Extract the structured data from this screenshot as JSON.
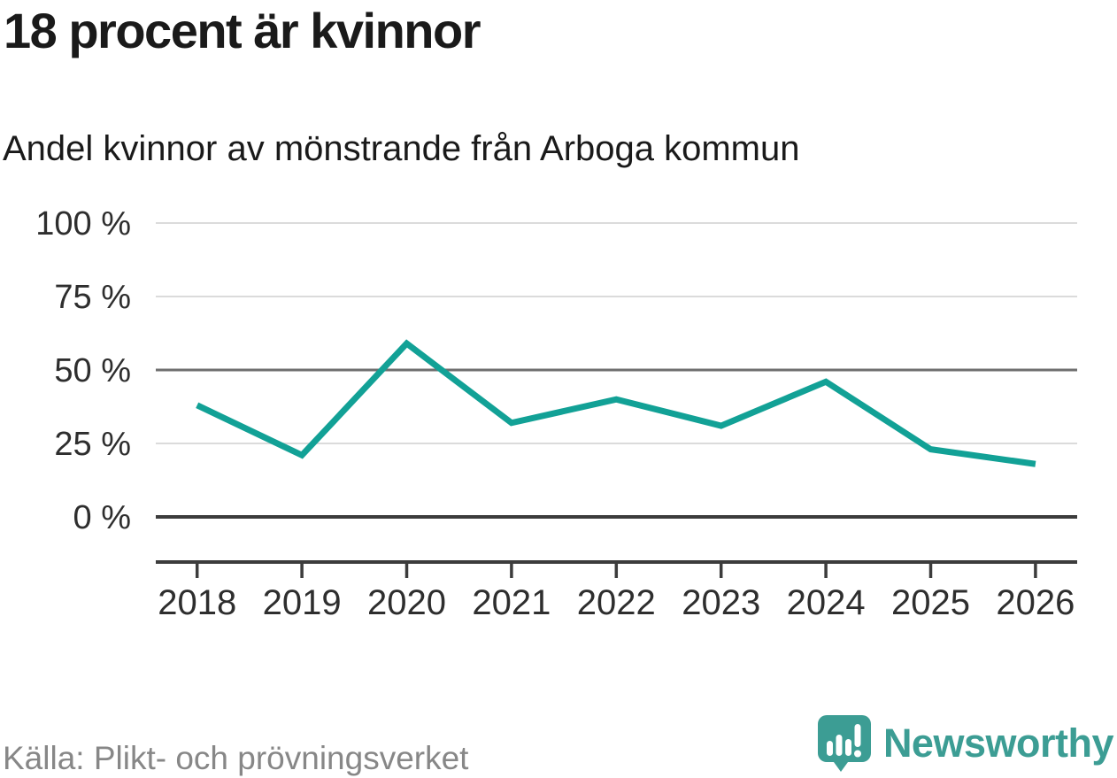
{
  "header": {
    "title": "18 procent är kvinnor",
    "subtitle": "Andel kvinnor av mönstrande från Arboga kommun"
  },
  "chart_data": {
    "type": "line",
    "title": "18 procent är kvinnor",
    "subtitle": "Andel kvinnor av mönstrande från Arboga kommun",
    "x": [
      "2018",
      "2019",
      "2020",
      "2021",
      "2022",
      "2023",
      "2024",
      "2025",
      "2026"
    ],
    "series": [
      {
        "name": "Andel kvinnor av mönstrande",
        "values": [
          38,
          21,
          59,
          32,
          40,
          31,
          46,
          23,
          18
        ]
      }
    ],
    "unit": "%",
    "ylim": [
      0,
      100
    ],
    "yticks": [
      0,
      25,
      50,
      75,
      100
    ],
    "ytick_labels": [
      "0 %",
      "25 %",
      "50 %",
      "75 %",
      "100 %"
    ],
    "xlabel": "",
    "ylabel": "",
    "grid": true,
    "legend": false,
    "emphasized_gridlines": {
      "baseline": 0,
      "midline": 50
    }
  },
  "footer": {
    "source": "Källa: Plikt- och prövningsverket",
    "brand": "Newsworthy"
  },
  "icons": {
    "logo": "newsworthy-speech-bubble-barchart-icon"
  },
  "colors": {
    "line": "#12a196",
    "brand": "#3c9d94",
    "grid_light": "#dbdbdb",
    "grid_mid": "#6f6f6f",
    "grid_dark": "#3c3c3c",
    "text_dark": "#1a1a1a",
    "text_axis": "#2e2e2e",
    "text_muted": "#878787",
    "logo_glyph": "#ffffff"
  }
}
